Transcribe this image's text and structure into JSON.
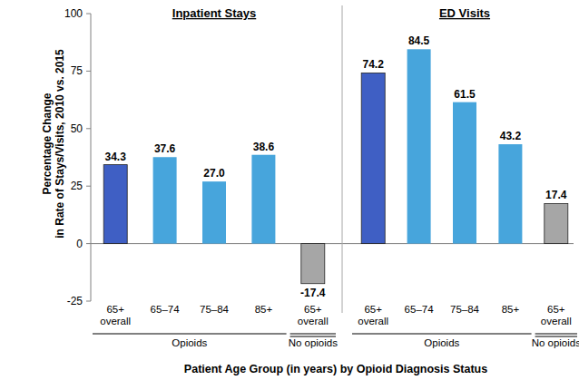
{
  "chart_data": {
    "type": "bar",
    "y_label": [
      "Percentage Change",
      "in Rate of Stays/Visits, 2010 vs. 2015"
    ],
    "x_label": "Patient Age Group (in years) by Opioid Diagnosis Status",
    "ylim": [
      -25,
      100
    ],
    "yticks": [
      -25,
      0,
      25,
      50,
      75,
      100
    ],
    "data_labels": true,
    "panels": [
      {
        "title": "Inpatient Stays",
        "categories": [
          "65+ overall",
          "65–74",
          "75–84",
          "85+",
          "65+ overall"
        ],
        "values": [
          34.3,
          37.6,
          27.0,
          38.6,
          -17.4
        ],
        "value_labels": [
          "34.3",
          "37.6",
          "27.0",
          "38.6",
          "-17.4"
        ],
        "colors": [
          "#3f5fc4",
          "#47a5dc",
          "#47a5dc",
          "#47a5dc",
          "#a6a6a6"
        ],
        "groups": [
          "Opioids",
          "Opioids",
          "Opioids",
          "Opioids",
          "No opioids"
        ]
      },
      {
        "title": "ED Visits",
        "categories": [
          "65+ overall",
          "65–74",
          "75–84",
          "85+",
          "65+ overall"
        ],
        "values": [
          74.2,
          84.5,
          61.5,
          43.2,
          17.4
        ],
        "value_labels": [
          "74.2",
          "84.5",
          "61.5",
          "43.2",
          "17.4"
        ],
        "colors": [
          "#3f5fc4",
          "#47a5dc",
          "#47a5dc",
          "#47a5dc",
          "#a6a6a6"
        ],
        "groups": [
          "Opioids",
          "Opioids",
          "Opioids",
          "Opioids",
          "No opioids"
        ]
      }
    ]
  }
}
